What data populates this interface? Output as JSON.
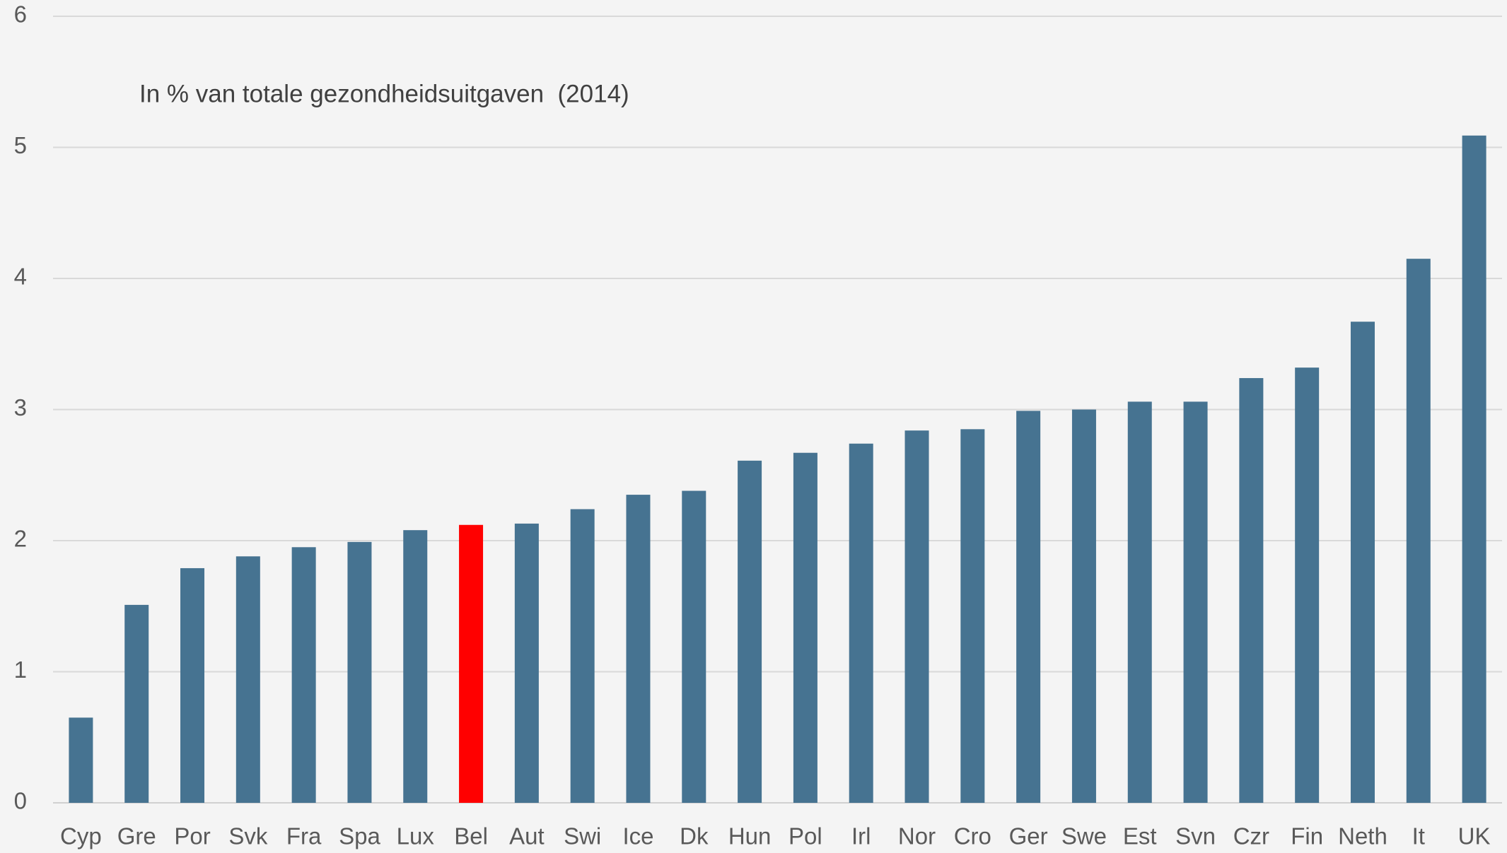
{
  "chart_data": {
    "type": "bar",
    "title": "In % van totale gezondheidsuitgaven  (2014)",
    "categories": [
      "Cyp",
      "Gre",
      "Por",
      "Svk",
      "Fra",
      "Spa",
      "Lux",
      "Bel",
      "Aut",
      "Swi",
      "Ice",
      "Dk",
      "Hun",
      "Pol",
      "Irl",
      "Nor",
      "Cro",
      "Ger",
      "Swe",
      "Est",
      "Svn",
      "Czr",
      "Fin",
      "Neth",
      "It",
      "UK"
    ],
    "values": [
      0.65,
      1.51,
      1.79,
      1.88,
      1.95,
      1.99,
      2.08,
      2.12,
      2.13,
      2.24,
      2.35,
      2.38,
      2.61,
      2.67,
      2.74,
      2.84,
      2.85,
      2.99,
      3.0,
      3.06,
      3.06,
      3.24,
      3.32,
      3.67,
      4.15,
      5.09
    ],
    "colors": [
      "#467391",
      "#467391",
      "#467391",
      "#467391",
      "#467391",
      "#467391",
      "#467391",
      "#ff0000",
      "#467391",
      "#467391",
      "#467391",
      "#467391",
      "#467391",
      "#467391",
      "#467391",
      "#467391",
      "#467391",
      "#467391",
      "#467391",
      "#467391",
      "#467391",
      "#467391",
      "#467391",
      "#467391",
      "#467391",
      "#467391"
    ],
    "ylim": [
      0,
      6
    ],
    "yticks": [
      0,
      1,
      2,
      3,
      4,
      5,
      6
    ],
    "grid": true
  }
}
